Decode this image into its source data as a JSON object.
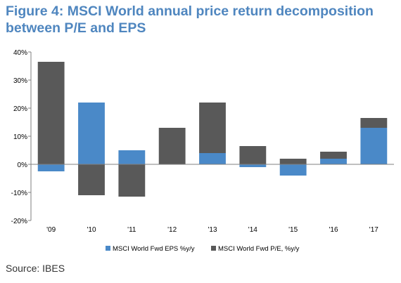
{
  "title": "Figure 4: MSCI World annual price return decomposition between P/E and EPS",
  "source": "Source: IBES",
  "colors": {
    "eps": "#4a89c8",
    "pe": "#595959",
    "title": "#4f86bf"
  },
  "chart_data": {
    "type": "bar",
    "stacked": true,
    "categories": [
      "'09",
      "'10",
      "'11",
      "'12",
      "'13",
      "'14",
      "'15",
      "'16",
      "'17"
    ],
    "series": [
      {
        "name": "MSCI World Fwd EPS %y/y",
        "values": [
          -2.5,
          22,
          5,
          0,
          4,
          -1,
          -4,
          2,
          13
        ]
      },
      {
        "name": "MSCI World Fwd P/E, %y/y",
        "values": [
          36.5,
          -11,
          -11.5,
          13,
          18,
          6.5,
          2,
          2.5,
          3.5
        ]
      }
    ],
    "yticks": [
      "40%",
      "30%",
      "20%",
      "10%",
      "0%",
      "-10%",
      "-20%"
    ],
    "ylim": [
      -20,
      40
    ],
    "legend": "bottom",
    "grid": false
  }
}
